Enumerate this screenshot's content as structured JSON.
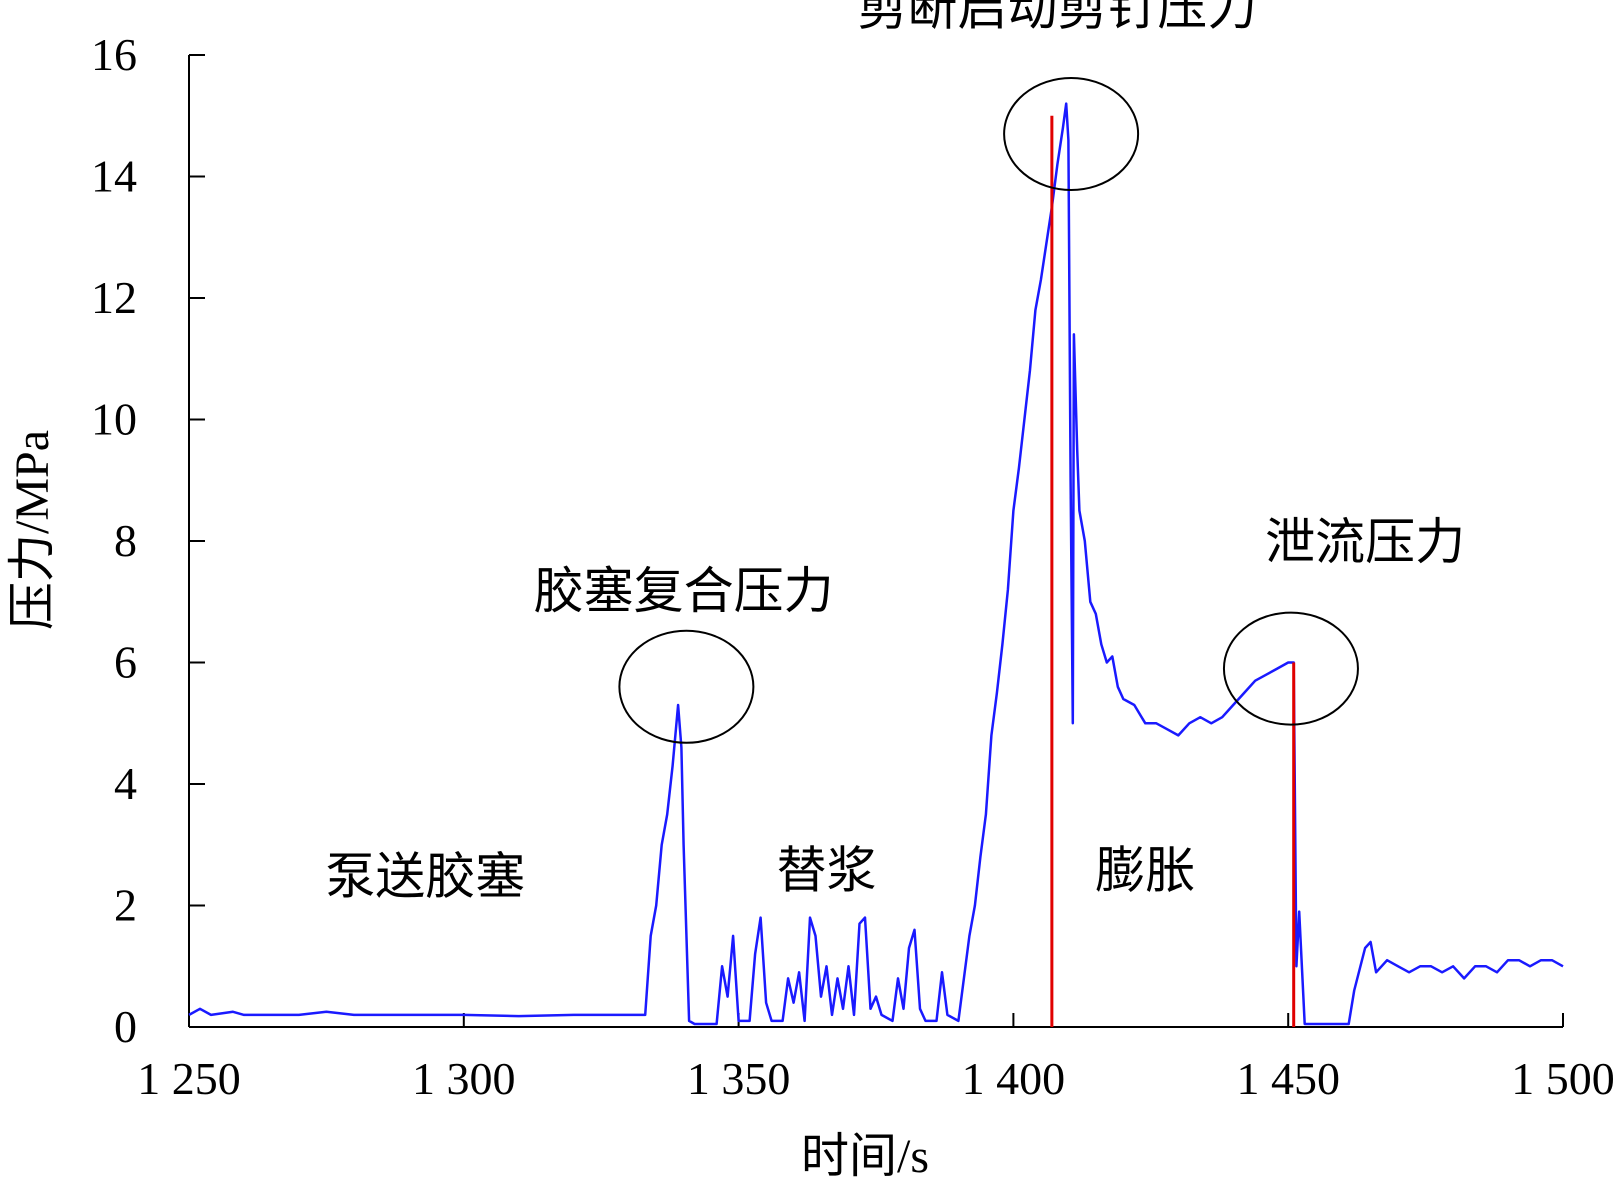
{
  "chart_data": {
    "type": "line",
    "title": "",
    "xlabel": "时间/s",
    "ylabel": "压力/MPa",
    "xlim": [
      1250,
      1500
    ],
    "ylim": [
      0,
      16
    ],
    "x_ticks": [
      1250,
      1300,
      1350,
      1400,
      1450,
      1500
    ],
    "x_tick_labels": [
      "1 250",
      "1 300",
      "1 350",
      "1 400",
      "1 450",
      "1 500"
    ],
    "y_ticks": [
      0,
      2,
      4,
      6,
      8,
      10,
      12,
      14,
      16
    ],
    "y_tick_labels": [
      "0",
      "2",
      "4",
      "6",
      "8",
      "10",
      "12",
      "14",
      "16"
    ],
    "grid": false,
    "series": [
      {
        "color": "#1a1aff",
        "points": [
          [
            1250,
            0.2
          ],
          [
            1252,
            0.3
          ],
          [
            1254,
            0.2
          ],
          [
            1258,
            0.25
          ],
          [
            1260,
            0.2
          ],
          [
            1270,
            0.2
          ],
          [
            1275,
            0.25
          ],
          [
            1280,
            0.2
          ],
          [
            1290,
            0.2
          ],
          [
            1300,
            0.2
          ],
          [
            1310,
            0.18
          ],
          [
            1320,
            0.2
          ],
          [
            1330,
            0.2
          ],
          [
            1333,
            0.2
          ],
          [
            1334,
            1.5
          ],
          [
            1335,
            2.0
          ],
          [
            1336,
            3.0
          ],
          [
            1337,
            3.5
          ],
          [
            1338,
            4.3
          ],
          [
            1339,
            5.3
          ],
          [
            1339.6,
            4.6
          ],
          [
            1340,
            3.0
          ],
          [
            1341,
            0.1
          ],
          [
            1342,
            0.05
          ],
          [
            1344,
            0.05
          ],
          [
            1346,
            0.05
          ],
          [
            1347,
            1.0
          ],
          [
            1348,
            0.5
          ],
          [
            1349,
            1.5
          ],
          [
            1350,
            0.1
          ],
          [
            1352,
            0.1
          ],
          [
            1353,
            1.2
          ],
          [
            1354,
            1.8
          ],
          [
            1355,
            0.4
          ],
          [
            1356,
            0.1
          ],
          [
            1358,
            0.1
          ],
          [
            1359,
            0.8
          ],
          [
            1360,
            0.4
          ],
          [
            1361,
            0.9
          ],
          [
            1362,
            0.1
          ],
          [
            1363,
            1.8
          ],
          [
            1364,
            1.5
          ],
          [
            1365,
            0.5
          ],
          [
            1366,
            1.0
          ],
          [
            1367,
            0.2
          ],
          [
            1368,
            0.8
          ],
          [
            1369,
            0.3
          ],
          [
            1370,
            1.0
          ],
          [
            1371,
            0.2
          ],
          [
            1372,
            1.7
          ],
          [
            1373,
            1.8
          ],
          [
            1374,
            0.3
          ],
          [
            1375,
            0.5
          ],
          [
            1376,
            0.2
          ],
          [
            1378,
            0.1
          ],
          [
            1379,
            0.8
          ],
          [
            1380,
            0.3
          ],
          [
            1381,
            1.3
          ],
          [
            1382,
            1.6
          ],
          [
            1383,
            0.3
          ],
          [
            1384,
            0.1
          ],
          [
            1386,
            0.1
          ],
          [
            1387,
            0.9
          ],
          [
            1388,
            0.2
          ],
          [
            1390,
            0.1
          ],
          [
            1391,
            0.8
          ],
          [
            1392,
            1.5
          ],
          [
            1393,
            2.0
          ],
          [
            1394,
            2.8
          ],
          [
            1395,
            3.5
          ],
          [
            1396,
            4.8
          ],
          [
            1397,
            5.5
          ],
          [
            1398,
            6.3
          ],
          [
            1399,
            7.2
          ],
          [
            1400,
            8.5
          ],
          [
            1401,
            9.2
          ],
          [
            1402,
            10.0
          ],
          [
            1403,
            10.8
          ],
          [
            1404,
            11.8
          ],
          [
            1405,
            12.3
          ],
          [
            1406,
            12.9
          ],
          [
            1407,
            13.5
          ],
          [
            1408,
            14.2
          ],
          [
            1409,
            14.8
          ],
          [
            1409.6,
            15.2
          ],
          [
            1410,
            14.6
          ],
          [
            1410.4,
            9.0
          ],
          [
            1410.8,
            5.0
          ],
          [
            1411,
            11.4
          ],
          [
            1411.6,
            9.5
          ],
          [
            1412,
            8.5
          ],
          [
            1413,
            8.0
          ],
          [
            1414,
            7.0
          ],
          [
            1415,
            6.8
          ],
          [
            1416,
            6.3
          ],
          [
            1417,
            6.0
          ],
          [
            1418,
            6.1
          ],
          [
            1419,
            5.6
          ],
          [
            1420,
            5.4
          ],
          [
            1422,
            5.3
          ],
          [
            1424,
            5.0
          ],
          [
            1426,
            5.0
          ],
          [
            1428,
            4.9
          ],
          [
            1430,
            4.8
          ],
          [
            1432,
            5.0
          ],
          [
            1434,
            5.1
          ],
          [
            1436,
            5.0
          ],
          [
            1438,
            5.1
          ],
          [
            1440,
            5.3
          ],
          [
            1442,
            5.5
          ],
          [
            1444,
            5.7
          ],
          [
            1446,
            5.8
          ],
          [
            1448,
            5.9
          ],
          [
            1450,
            6.0
          ],
          [
            1451,
            6.0
          ],
          [
            1451.5,
            1.0
          ],
          [
            1452,
            1.9
          ],
          [
            1453,
            0.05
          ],
          [
            1455,
            0.05
          ],
          [
            1458,
            0.05
          ],
          [
            1461,
            0.05
          ],
          [
            1462,
            0.6
          ],
          [
            1464,
            1.3
          ],
          [
            1465,
            1.4
          ],
          [
            1466,
            0.9
          ],
          [
            1468,
            1.1
          ],
          [
            1470,
            1.0
          ],
          [
            1472,
            0.9
          ],
          [
            1474,
            1.0
          ],
          [
            1476,
            1.0
          ],
          [
            1478,
            0.9
          ],
          [
            1480,
            1.0
          ],
          [
            1482,
            0.8
          ],
          [
            1484,
            1.0
          ],
          [
            1486,
            1.0
          ],
          [
            1488,
            0.9
          ],
          [
            1490,
            1.1
          ],
          [
            1492,
            1.1
          ],
          [
            1494,
            1.0
          ],
          [
            1496,
            1.1
          ],
          [
            1498,
            1.1
          ],
          [
            1500,
            1.0
          ]
        ]
      }
    ],
    "event_lines": [
      {
        "x": 1407,
        "y_top": 15.0,
        "color": "#e00000"
      },
      {
        "x": 1451,
        "y_top": 6.0,
        "color": "#e00000"
      }
    ],
    "circles": [
      {
        "cx": 1340.5,
        "cy": 5.6
      },
      {
        "cx": 1410.5,
        "cy": 14.7
      },
      {
        "cx": 1450.5,
        "cy": 5.9
      }
    ],
    "annotations": [
      {
        "text": "剪断启动剪钉压力",
        "x": 1408,
        "y": 16.5
      },
      {
        "text": "胶塞复合压力",
        "x": 1340,
        "y": 6.9
      },
      {
        "text": "泄流压力",
        "x": 1464,
        "y": 7.7
      },
      {
        "text": "泵送胶塞",
        "x": 1293,
        "y": 2.2
      },
      {
        "text": "替浆",
        "x": 1366,
        "y": 2.3
      },
      {
        "text": "膨胀",
        "x": 1424,
        "y": 2.3
      }
    ]
  }
}
